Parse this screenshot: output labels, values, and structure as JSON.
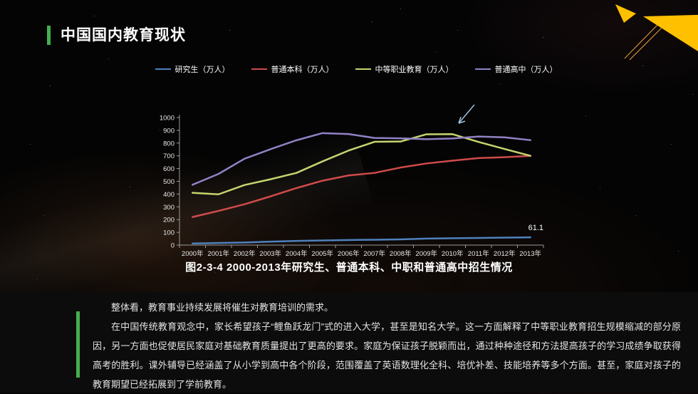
{
  "slide": {
    "title": "中国国内教育现状",
    "caption": "图2-3-4 2000-2013年研究生、普通本科、中职和普通高中招生情况",
    "paragraphs": [
      "整体看，教育事业持续发展将催生对教育培训的需求。",
      "在中国传统教育观念中，家长希望孩子“鲤鱼跃龙门”式的进入大学，甚至是知名大学。这一方面解释了中等职业教育招生规模缩减的部分原因，另一方面也促使居民家庭对基础教育质量提出了更高的要求。家庭为保证孩子脱颖而出，通过种种途径和方法提高孩子的学习成绩争取获得高考的胜利。课外辅导已经涵盖了从小学到高中各个阶段，范围覆盖了英语数理化全科、培优补差、技能培养等多个方面。甚至，家庭对孩子的教育期望已经拓展到了学前教育。"
    ],
    "colors": {
      "accent_green": "#44b04e",
      "accent_yellow": "#ffc000",
      "arrow_blue": "#9cc2e0"
    }
  },
  "chart_data": {
    "type": "line",
    "x": [
      "2000年",
      "2001年",
      "2002年",
      "2003年",
      "2004年",
      "2005年",
      "2006年",
      "2007年",
      "2008年",
      "2009年",
      "2010年",
      "2011年",
      "2012年",
      "2013年"
    ],
    "series": [
      {
        "name": "研究生（万人）",
        "color": "#4f81bd",
        "values": [
          12.9,
          16.5,
          20.3,
          26.9,
          32.6,
          36.5,
          39.8,
          41.9,
          44.6,
          51.1,
          53.8,
          56.0,
          59.0,
          61.1
        ]
      },
      {
        "name": "普通本科（万人）",
        "color": "#cf4b4b",
        "values": [
          220,
          268,
          320,
          382,
          447,
          505,
          546,
          566,
          608,
          640,
          662,
          682,
          689,
          700
        ]
      },
      {
        "name": "中等职业教育（万人）",
        "color": "#c6d46e",
        "values": [
          410,
          398,
          471,
          516,
          566,
          656,
          741,
          810,
          812,
          869,
          870,
          809,
          754,
          700
        ]
      },
      {
        "name": "普通高中（万人）",
        "color": "#9181c4",
        "values": [
          473,
          558,
          677,
          752,
          822,
          878,
          871,
          840,
          837,
          830,
          836,
          851,
          845,
          823
        ]
      }
    ],
    "ylim": [
      0,
      1000
    ],
    "ytick_step": 100,
    "legend_position": "top",
    "grid": false,
    "point_label": {
      "series_index": 0,
      "point_index": 13,
      "text": "61.1"
    }
  }
}
